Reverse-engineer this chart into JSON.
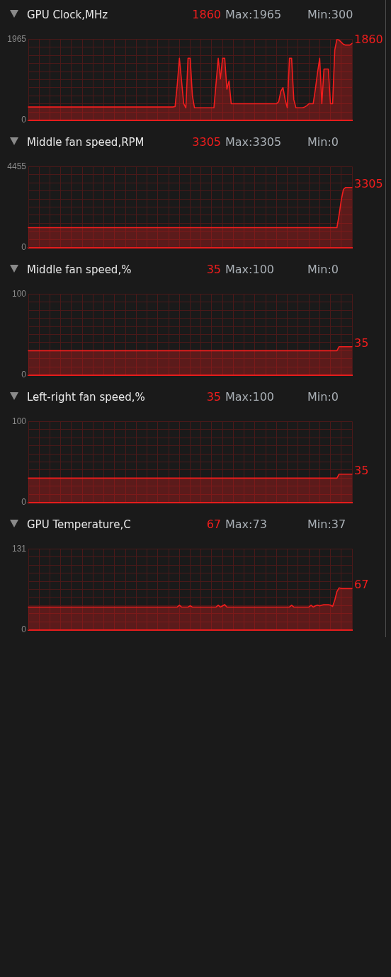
{
  "chart_data": [
    {
      "type": "area",
      "title": "GPU Clock,MHz",
      "annotations": [
        "1860",
        "Max:1965",
        "Min:300"
      ],
      "categories": [
        null,
        null,
        null,
        null,
        null,
        null,
        null,
        null,
        null,
        null,
        null,
        null,
        null,
        null,
        null,
        null,
        null,
        null,
        null,
        null,
        null,
        null,
        null,
        null,
        null,
        null,
        null,
        null,
        null,
        null,
        null,
        null,
        null,
        null,
        null,
        null,
        null,
        null,
        null,
        null,
        null,
        null,
        null,
        null,
        null,
        null,
        null,
        null,
        null,
        null,
        null,
        null,
        null,
        null,
        null,
        null,
        null,
        null,
        null,
        null,
        null,
        null,
        null,
        null,
        null,
        null,
        null,
        null,
        null,
        null,
        null,
        null,
        null,
        null,
        null,
        null,
        null,
        null,
        null,
        null,
        null,
        null,
        null,
        null,
        null,
        null,
        null,
        null,
        null,
        null,
        null,
        null,
        null,
        null,
        null,
        null,
        null,
        null,
        null,
        null,
        null,
        null,
        null,
        null,
        null,
        null,
        null,
        null,
        null,
        null,
        null,
        null,
        null,
        null,
        null,
        null,
        null,
        null,
        null,
        null,
        null,
        null,
        null,
        null,
        null,
        null,
        null,
        null,
        null,
        null,
        null,
        null,
        null,
        null,
        null,
        null,
        null,
        null,
        null,
        null,
        null,
        null,
        null,
        null,
        null,
        null,
        null,
        null,
        null,
        null,
        null
      ],
      "values": [
        320,
        320,
        320,
        320,
        320,
        320,
        320,
        320,
        320,
        320,
        320,
        320,
        320,
        320,
        320,
        320,
        320,
        320,
        320,
        320,
        320,
        320,
        320,
        320,
        320,
        320,
        320,
        320,
        320,
        320,
        320,
        320,
        320,
        320,
        320,
        320,
        320,
        320,
        320,
        320,
        320,
        320,
        320,
        320,
        320,
        320,
        320,
        320,
        320,
        320,
        320,
        320,
        320,
        320,
        320,
        320,
        320,
        320,
        320,
        320,
        320,
        320,
        320,
        320,
        320,
        320,
        320,
        320,
        330,
        850,
        1500,
        950,
        400,
        300,
        1500,
        1500,
        600,
        300,
        300,
        300,
        300,
        300,
        300,
        300,
        300,
        300,
        300,
        900,
        1500,
        1000,
        1500,
        1500,
        750,
        950,
        400,
        400,
        400,
        400,
        400,
        400,
        400,
        400,
        400,
        400,
        400,
        400,
        400,
        400,
        400,
        400,
        400,
        400,
        400,
        400,
        400,
        400,
        450,
        700,
        790,
        500,
        300,
        1500,
        1500,
        500,
        300,
        300,
        300,
        300,
        320,
        350,
        400,
        400,
        400,
        750,
        1150,
        1500,
        400,
        1240,
        1240,
        1240,
        400,
        400,
        1700,
        1965,
        1940,
        1890,
        1840,
        1820,
        1820,
        1820,
        1860
      ],
      "value_labels": [
        null,
        null,
        null,
        null,
        null,
        null,
        null,
        null,
        null,
        null,
        null,
        null,
        null,
        null,
        null,
        null,
        null,
        null,
        null,
        null,
        null,
        null,
        null,
        null,
        null,
        null,
        null,
        null,
        null,
        null,
        null,
        null,
        null,
        null,
        null,
        null,
        null,
        null,
        null,
        null,
        null,
        null,
        null,
        null,
        null,
        null,
        null,
        null,
        null,
        null,
        null,
        null,
        null,
        null,
        null,
        null,
        null,
        null,
        null,
        null,
        null,
        null,
        null,
        null,
        null,
        null,
        null,
        null,
        null,
        null,
        null,
        null,
        null,
        null,
        null,
        null,
        null,
        null,
        null,
        null,
        null,
        null,
        null,
        null,
        null,
        null,
        null,
        null,
        null,
        null,
        null,
        null,
        null,
        null,
        null,
        null,
        null,
        null,
        null,
        null,
        null,
        null,
        null,
        null,
        null,
        null,
        null,
        null,
        null,
        null,
        null,
        null,
        null,
        null,
        null,
        null,
        null,
        null,
        null,
        null,
        null,
        null,
        null,
        null,
        null,
        null,
        null,
        null,
        null,
        null,
        null,
        null,
        null,
        null,
        null,
        null,
        null,
        null,
        null,
        null,
        null,
        null,
        null,
        null,
        null,
        null,
        null,
        null,
        null,
        null,
        "1860"
      ],
      "color": "#f21d1d",
      "ylim": [
        0,
        1965
      ],
      "yticks": [
        0,
        {
          "value": 196.5,
          "label": null
        },
        {
          "value": 393,
          "label": null
        },
        {
          "value": 589.5,
          "label": null
        },
        {
          "value": 786,
          "label": null
        },
        {
          "value": 982.5,
          "label": null
        },
        {
          "value": 1179,
          "label": null
        },
        {
          "value": 1375.5,
          "label": null
        },
        {
          "value": 1572,
          "label": null
        },
        {
          "value": 1768.5,
          "label": null
        },
        1965
      ],
      "grid": true,
      "tick_labels": "y"
    },
    {
      "type": "area",
      "title": "Middle fan speed,RPM",
      "annotations": [
        "3305",
        "Max:3305",
        "Min:0"
      ],
      "categories": [
        null,
        null,
        null,
        null,
        null,
        null,
        null,
        null,
        null,
        null,
        null,
        null,
        null,
        null,
        null,
        null,
        null,
        null,
        null,
        null,
        null,
        null,
        null,
        null,
        null,
        null,
        null,
        null,
        null,
        null,
        null,
        null,
        null,
        null,
        null,
        null,
        null,
        null,
        null,
        null,
        null,
        null,
        null,
        null,
        null,
        null,
        null,
        null,
        null,
        null,
        null,
        null,
        null,
        null,
        null,
        null,
        null,
        null,
        null,
        null,
        null,
        null,
        null,
        null,
        null,
        null,
        null,
        null,
        null,
        null,
        null,
        null,
        null,
        null,
        null,
        null,
        null,
        null,
        null,
        null,
        null,
        null,
        null,
        null,
        null,
        null,
        null,
        null,
        null,
        null,
        null,
        null,
        null,
        null,
        null,
        null,
        null,
        null,
        null,
        null,
        null,
        null,
        null,
        null,
        null,
        null,
        null,
        null,
        null,
        null,
        null,
        null,
        null,
        null,
        null,
        null,
        null,
        null,
        null,
        null,
        null,
        null,
        null,
        null,
        null,
        null,
        null,
        null,
        null,
        null,
        null,
        null,
        null,
        null,
        null,
        null,
        null,
        null,
        null,
        null,
        null,
        null,
        null,
        null,
        null,
        null,
        null,
        null,
        null,
        null,
        null
      ],
      "values": [
        1100,
        1100,
        1100,
        1100,
        1100,
        1100,
        1100,
        1100,
        1100,
        1100,
        1100,
        1100,
        1100,
        1100,
        1100,
        1100,
        1100,
        1100,
        1100,
        1100,
        1100,
        1100,
        1100,
        1100,
        1100,
        1100,
        1100,
        1100,
        1100,
        1100,
        1100,
        1100,
        1100,
        1100,
        1100,
        1100,
        1100,
        1100,
        1100,
        1100,
        1100,
        1100,
        1100,
        1100,
        1100,
        1100,
        1100,
        1100,
        1100,
        1100,
        1100,
        1100,
        1100,
        1100,
        1100,
        1100,
        1100,
        1100,
        1100,
        1100,
        1100,
        1100,
        1100,
        1100,
        1100,
        1100,
        1100,
        1100,
        1100,
        1100,
        1100,
        1100,
        1100,
        1100,
        1100,
        1100,
        1100,
        1100,
        1100,
        1100,
        1100,
        1100,
        1100,
        1100,
        1100,
        1100,
        1100,
        1100,
        1100,
        1100,
        1100,
        1100,
        1100,
        1100,
        1100,
        1100,
        1100,
        1100,
        1100,
        1100,
        1100,
        1100,
        1100,
        1100,
        1100,
        1100,
        1100,
        1100,
        1100,
        1100,
        1100,
        1100,
        1100,
        1100,
        1100,
        1100,
        1100,
        1100,
        1100,
        1100,
        1100,
        1100,
        1100,
        1100,
        1100,
        1100,
        1100,
        1100,
        1100,
        1100,
        1100,
        1100,
        1100,
        1100,
        1100,
        1100,
        1100,
        1100,
        1100,
        1100,
        1100,
        1100,
        1100,
        1100,
        1800,
        2600,
        3200,
        3305,
        3305,
        3305,
        3305
      ],
      "value_labels": [
        null,
        null,
        null,
        null,
        null,
        null,
        null,
        null,
        null,
        null,
        null,
        null,
        null,
        null,
        null,
        null,
        null,
        null,
        null,
        null,
        null,
        null,
        null,
        null,
        null,
        null,
        null,
        null,
        null,
        null,
        null,
        null,
        null,
        null,
        null,
        null,
        null,
        null,
        null,
        null,
        null,
        null,
        null,
        null,
        null,
        null,
        null,
        null,
        null,
        null,
        null,
        null,
        null,
        null,
        null,
        null,
        null,
        null,
        null,
        null,
        null,
        null,
        null,
        null,
        null,
        null,
        null,
        null,
        null,
        null,
        null,
        null,
        null,
        null,
        null,
        null,
        null,
        null,
        null,
        null,
        null,
        null,
        null,
        null,
        null,
        null,
        null,
        null,
        null,
        null,
        null,
        null,
        null,
        null,
        null,
        null,
        null,
        null,
        null,
        null,
        null,
        null,
        null,
        null,
        null,
        null,
        null,
        null,
        null,
        null,
        null,
        null,
        null,
        null,
        null,
        null,
        null,
        null,
        null,
        null,
        null,
        null,
        null,
        null,
        null,
        null,
        null,
        null,
        null,
        null,
        null,
        null,
        null,
        null,
        null,
        null,
        null,
        null,
        null,
        null,
        null,
        null,
        null,
        null,
        null,
        null,
        null,
        null,
        null,
        null,
        "3305"
      ],
      "color": "#f21d1d",
      "ylim": [
        0,
        4455
      ],
      "yticks": [
        0,
        {
          "value": 445.5,
          "label": null
        },
        {
          "value": 891,
          "label": null
        },
        {
          "value": 1336.5,
          "label": null
        },
        {
          "value": 1782,
          "label": null
        },
        {
          "value": 2227.5,
          "label": null
        },
        {
          "value": 2673,
          "label": null
        },
        {
          "value": 3118.5,
          "label": null
        },
        {
          "value": 3564,
          "label": null
        },
        {
          "value": 4009.5,
          "label": null
        },
        4455
      ],
      "grid": true,
      "tick_labels": "y"
    },
    {
      "type": "area",
      "title": "Middle fan speed,%",
      "annotations": [
        "35",
        "Max:100",
        "Min:0"
      ],
      "categories": [
        null,
        null,
        null,
        null,
        null,
        null,
        null,
        null,
        null,
        null,
        null,
        null,
        null,
        null,
        null,
        null,
        null,
        null,
        null,
        null,
        null,
        null,
        null,
        null,
        null,
        null,
        null,
        null,
        null,
        null,
        null,
        null,
        null,
        null,
        null,
        null,
        null,
        null,
        null,
        null,
        null,
        null,
        null,
        null,
        null,
        null,
        null,
        null,
        null,
        null,
        null,
        null,
        null,
        null,
        null,
        null,
        null,
        null,
        null,
        null,
        null,
        null,
        null,
        null,
        null,
        null,
        null,
        null,
        null,
        null,
        null,
        null,
        null,
        null,
        null,
        null,
        null,
        null,
        null,
        null,
        null,
        null,
        null,
        null,
        null,
        null,
        null,
        null,
        null,
        null,
        null,
        null,
        null,
        null,
        null,
        null,
        null,
        null,
        null,
        null,
        null,
        null,
        null,
        null,
        null,
        null,
        null,
        null,
        null,
        null,
        null,
        null,
        null,
        null,
        null,
        null,
        null,
        null,
        null,
        null,
        null,
        null,
        null,
        null,
        null,
        null,
        null,
        null,
        null,
        null,
        null,
        null,
        null,
        null,
        null,
        null,
        null,
        null,
        null,
        null,
        null,
        null,
        null,
        null,
        null,
        null,
        null,
        null,
        null,
        null,
        null
      ],
      "values": [
        30,
        30,
        30,
        30,
        30,
        30,
        30,
        30,
        30,
        30,
        30,
        30,
        30,
        30,
        30,
        30,
        30,
        30,
        30,
        30,
        30,
        30,
        30,
        30,
        30,
        30,
        30,
        30,
        30,
        30,
        30,
        30,
        30,
        30,
        30,
        30,
        30,
        30,
        30,
        30,
        30,
        30,
        30,
        30,
        30,
        30,
        30,
        30,
        30,
        30,
        30,
        30,
        30,
        30,
        30,
        30,
        30,
        30,
        30,
        30,
        30,
        30,
        30,
        30,
        30,
        30,
        30,
        30,
        30,
        30,
        30,
        30,
        30,
        30,
        30,
        30,
        30,
        30,
        30,
        30,
        30,
        30,
        30,
        30,
        30,
        30,
        30,
        30,
        30,
        30,
        30,
        30,
        30,
        30,
        30,
        30,
        30,
        30,
        30,
        30,
        30,
        30,
        30,
        30,
        30,
        30,
        30,
        30,
        30,
        30,
        30,
        30,
        30,
        30,
        30,
        30,
        30,
        30,
        30,
        30,
        30,
        30,
        30,
        30,
        30,
        30,
        30,
        30,
        30,
        30,
        30,
        30,
        30,
        30,
        30,
        30,
        30,
        30,
        30,
        30,
        30,
        30,
        30,
        30,
        35,
        35,
        35,
        35,
        35,
        35,
        35
      ],
      "value_labels": [
        null,
        null,
        null,
        null,
        null,
        null,
        null,
        null,
        null,
        null,
        null,
        null,
        null,
        null,
        null,
        null,
        null,
        null,
        null,
        null,
        null,
        null,
        null,
        null,
        null,
        null,
        null,
        null,
        null,
        null,
        null,
        null,
        null,
        null,
        null,
        null,
        null,
        null,
        null,
        null,
        null,
        null,
        null,
        null,
        null,
        null,
        null,
        null,
        null,
        null,
        null,
        null,
        null,
        null,
        null,
        null,
        null,
        null,
        null,
        null,
        null,
        null,
        null,
        null,
        null,
        null,
        null,
        null,
        null,
        null,
        null,
        null,
        null,
        null,
        null,
        null,
        null,
        null,
        null,
        null,
        null,
        null,
        null,
        null,
        null,
        null,
        null,
        null,
        null,
        null,
        null,
        null,
        null,
        null,
        null,
        null,
        null,
        null,
        null,
        null,
        null,
        null,
        null,
        null,
        null,
        null,
        null,
        null,
        null,
        null,
        null,
        null,
        null,
        null,
        null,
        null,
        null,
        null,
        null,
        null,
        null,
        null,
        null,
        null,
        null,
        null,
        null,
        null,
        null,
        null,
        null,
        null,
        null,
        null,
        null,
        null,
        null,
        null,
        null,
        null,
        null,
        null,
        null,
        null,
        null,
        null,
        null,
        null,
        null,
        null,
        "35"
      ],
      "color": "#f21d1d",
      "ylim": [
        0,
        100
      ],
      "yticks": [
        0,
        {
          "value": 10,
          "label": null
        },
        {
          "value": 20,
          "label": null
        },
        {
          "value": 30,
          "label": null
        },
        {
          "value": 40,
          "label": null
        },
        {
          "value": 50,
          "label": null
        },
        {
          "value": 60,
          "label": null
        },
        {
          "value": 70,
          "label": null
        },
        {
          "value": 80,
          "label": null
        },
        {
          "value": 90,
          "label": null
        },
        100
      ],
      "grid": true,
      "tick_labels": "y"
    },
    {
      "type": "area",
      "title": "Left-right fan speed,%",
      "annotations": [
        "35",
        "Max:100",
        "Min:0"
      ],
      "categories": [
        null,
        null,
        null,
        null,
        null,
        null,
        null,
        null,
        null,
        null,
        null,
        null,
        null,
        null,
        null,
        null,
        null,
        null,
        null,
        null,
        null,
        null,
        null,
        null,
        null,
        null,
        null,
        null,
        null,
        null,
        null,
        null,
        null,
        null,
        null,
        null,
        null,
        null,
        null,
        null,
        null,
        null,
        null,
        null,
        null,
        null,
        null,
        null,
        null,
        null,
        null,
        null,
        null,
        null,
        null,
        null,
        null,
        null,
        null,
        null,
        null,
        null,
        null,
        null,
        null,
        null,
        null,
        null,
        null,
        null,
        null,
        null,
        null,
        null,
        null,
        null,
        null,
        null,
        null,
        null,
        null,
        null,
        null,
        null,
        null,
        null,
        null,
        null,
        null,
        null,
        null,
        null,
        null,
        null,
        null,
        null,
        null,
        null,
        null,
        null,
        null,
        null,
        null,
        null,
        null,
        null,
        null,
        null,
        null,
        null,
        null,
        null,
        null,
        null,
        null,
        null,
        null,
        null,
        null,
        null,
        null,
        null,
        null,
        null,
        null,
        null,
        null,
        null,
        null,
        null,
        null,
        null,
        null,
        null,
        null,
        null,
        null,
        null,
        null,
        null,
        null,
        null,
        null,
        null,
        null,
        null,
        null,
        null,
        null,
        null,
        null
      ],
      "values": [
        30,
        30,
        30,
        30,
        30,
        30,
        30,
        30,
        30,
        30,
        30,
        30,
        30,
        30,
        30,
        30,
        30,
        30,
        30,
        30,
        30,
        30,
        30,
        30,
        30,
        30,
        30,
        30,
        30,
        30,
        30,
        30,
        30,
        30,
        30,
        30,
        30,
        30,
        30,
        30,
        30,
        30,
        30,
        30,
        30,
        30,
        30,
        30,
        30,
        30,
        30,
        30,
        30,
        30,
        30,
        30,
        30,
        30,
        30,
        30,
        30,
        30,
        30,
        30,
        30,
        30,
        30,
        30,
        30,
        30,
        30,
        30,
        30,
        30,
        30,
        30,
        30,
        30,
        30,
        30,
        30,
        30,
        30,
        30,
        30,
        30,
        30,
        30,
        30,
        30,
        30,
        30,
        30,
        30,
        30,
        30,
        30,
        30,
        30,
        30,
        30,
        30,
        30,
        30,
        30,
        30,
        30,
        30,
        30,
        30,
        30,
        30,
        30,
        30,
        30,
        30,
        30,
        30,
        30,
        30,
        30,
        30,
        30,
        30,
        30,
        30,
        30,
        30,
        30,
        30,
        30,
        30,
        30,
        30,
        30,
        30,
        30,
        30,
        30,
        30,
        30,
        30,
        30,
        30,
        35,
        35,
        35,
        35,
        35,
        35,
        35
      ],
      "value_labels": [
        null,
        null,
        null,
        null,
        null,
        null,
        null,
        null,
        null,
        null,
        null,
        null,
        null,
        null,
        null,
        null,
        null,
        null,
        null,
        null,
        null,
        null,
        null,
        null,
        null,
        null,
        null,
        null,
        null,
        null,
        null,
        null,
        null,
        null,
        null,
        null,
        null,
        null,
        null,
        null,
        null,
        null,
        null,
        null,
        null,
        null,
        null,
        null,
        null,
        null,
        null,
        null,
        null,
        null,
        null,
        null,
        null,
        null,
        null,
        null,
        null,
        null,
        null,
        null,
        null,
        null,
        null,
        null,
        null,
        null,
        null,
        null,
        null,
        null,
        null,
        null,
        null,
        null,
        null,
        null,
        null,
        null,
        null,
        null,
        null,
        null,
        null,
        null,
        null,
        null,
        null,
        null,
        null,
        null,
        null,
        null,
        null,
        null,
        null,
        null,
        null,
        null,
        null,
        null,
        null,
        null,
        null,
        null,
        null,
        null,
        null,
        null,
        null,
        null,
        null,
        null,
        null,
        null,
        null,
        null,
        null,
        null,
        null,
        null,
        null,
        null,
        null,
        null,
        null,
        null,
        null,
        null,
        null,
        null,
        null,
        null,
        null,
        null,
        null,
        null,
        null,
        null,
        null,
        null,
        null,
        null,
        null,
        null,
        null,
        null,
        "35"
      ],
      "color": "#f21d1d",
      "ylim": [
        0,
        100
      ],
      "yticks": [
        0,
        {
          "value": 10,
          "label": null
        },
        {
          "value": 20,
          "label": null
        },
        {
          "value": 30,
          "label": null
        },
        {
          "value": 40,
          "label": null
        },
        {
          "value": 50,
          "label": null
        },
        {
          "value": 60,
          "label": null
        },
        {
          "value": 70,
          "label": null
        },
        {
          "value": 80,
          "label": null
        },
        {
          "value": 90,
          "label": null
        },
        100
      ],
      "grid": true,
      "tick_labels": "y"
    },
    {
      "type": "area",
      "title": "GPU Temperature,C",
      "annotations": [
        "67",
        "Max:73",
        "Min:37"
      ],
      "categories": [
        null,
        null,
        null,
        null,
        null,
        null,
        null,
        null,
        null,
        null,
        null,
        null,
        null,
        null,
        null,
        null,
        null,
        null,
        null,
        null,
        null,
        null,
        null,
        null,
        null,
        null,
        null,
        null,
        null,
        null,
        null,
        null,
        null,
        null,
        null,
        null,
        null,
        null,
        null,
        null,
        null,
        null,
        null,
        null,
        null,
        null,
        null,
        null,
        null,
        null,
        null,
        null,
        null,
        null,
        null,
        null,
        null,
        null,
        null,
        null,
        null,
        null,
        null,
        null,
        null,
        null,
        null,
        null,
        null,
        null,
        null,
        null,
        null,
        null,
        null,
        null,
        null,
        null,
        null,
        null,
        null,
        null,
        null,
        null,
        null,
        null,
        null,
        null,
        null,
        null,
        null,
        null,
        null,
        null,
        null,
        null,
        null,
        null,
        null,
        null,
        null,
        null,
        null,
        null,
        null,
        null,
        null,
        null,
        null,
        null,
        null,
        null,
        null,
        null,
        null,
        null,
        null,
        null,
        null,
        null,
        null,
        null,
        null,
        null,
        null,
        null,
        null,
        null,
        null,
        null,
        null,
        null,
        null,
        null,
        null,
        null,
        null,
        null,
        null,
        null,
        null,
        null,
        null,
        null,
        null,
        null,
        null,
        null,
        null,
        null,
        null
      ],
      "values": [
        37,
        37,
        37,
        37,
        37,
        37,
        37,
        37,
        37,
        37,
        37,
        37,
        37,
        37,
        37,
        37,
        37,
        37,
        37,
        37,
        37,
        37,
        37,
        37,
        37,
        37,
        37,
        37,
        37,
        37,
        37,
        37,
        37,
        37,
        37,
        37,
        37,
        37,
        37,
        37,
        37,
        37,
        37,
        37,
        37,
        37,
        37,
        37,
        37,
        37,
        37,
        37,
        37,
        37,
        37,
        37,
        37,
        37,
        37,
        37,
        37,
        37,
        37,
        37,
        37,
        37,
        37,
        37,
        37,
        37,
        40,
        37,
        37,
        37,
        37,
        39,
        37,
        37,
        37,
        37,
        37,
        37,
        37,
        37,
        37,
        37,
        37,
        37,
        40,
        37,
        39,
        41,
        37,
        37,
        37,
        37,
        37,
        37,
        37,
        37,
        37,
        37,
        37,
        37,
        37,
        37,
        37,
        37,
        37,
        37,
        37,
        37,
        37,
        37,
        37,
        37,
        37,
        37,
        37,
        37,
        37,
        37,
        40,
        37,
        37,
        37,
        37,
        37,
        37,
        37,
        37,
        40,
        37,
        39,
        40,
        39,
        40,
        41,
        41,
        41,
        40,
        38,
        48,
        62,
        68,
        67,
        67,
        67,
        67,
        67,
        67
      ],
      "value_labels": [
        null,
        null,
        null,
        null,
        null,
        null,
        null,
        null,
        null,
        null,
        null,
        null,
        null,
        null,
        null,
        null,
        null,
        null,
        null,
        null,
        null,
        null,
        null,
        null,
        null,
        null,
        null,
        null,
        null,
        null,
        null,
        null,
        null,
        null,
        null,
        null,
        null,
        null,
        null,
        null,
        null,
        null,
        null,
        null,
        null,
        null,
        null,
        null,
        null,
        null,
        null,
        null,
        null,
        null,
        null,
        null,
        null,
        null,
        null,
        null,
        null,
        null,
        null,
        null,
        null,
        null,
        null,
        null,
        null,
        null,
        null,
        null,
        null,
        null,
        null,
        null,
        null,
        null,
        null,
        null,
        null,
        null,
        null,
        null,
        null,
        null,
        null,
        null,
        null,
        null,
        null,
        null,
        null,
        null,
        null,
        null,
        null,
        null,
        null,
        null,
        null,
        null,
        null,
        null,
        null,
        null,
        null,
        null,
        null,
        null,
        null,
        null,
        null,
        null,
        null,
        null,
        null,
        null,
        null,
        null,
        null,
        null,
        null,
        null,
        null,
        null,
        null,
        null,
        null,
        null,
        null,
        null,
        null,
        null,
        null,
        null,
        null,
        null,
        null,
        null,
        null,
        null,
        null,
        null,
        null,
        null,
        null,
        null,
        null,
        null,
        "67"
      ],
      "color": "#f21d1d",
      "ylim": [
        0,
        131
      ],
      "yticks": [
        0,
        {
          "value": 13.1,
          "label": null
        },
        {
          "value": 26.2,
          "label": null
        },
        {
          "value": 39.3,
          "label": null
        },
        {
          "value": 52.4,
          "label": null
        },
        {
          "value": 65.5,
          "label": null
        },
        {
          "value": 78.6,
          "label": null
        },
        {
          "value": 91.7,
          "label": null
        },
        {
          "value": 104.8,
          "label": null
        },
        {
          "value": 117.9,
          "label": null
        },
        131
      ],
      "grid": true,
      "tick_labels": "y"
    }
  ]
}
